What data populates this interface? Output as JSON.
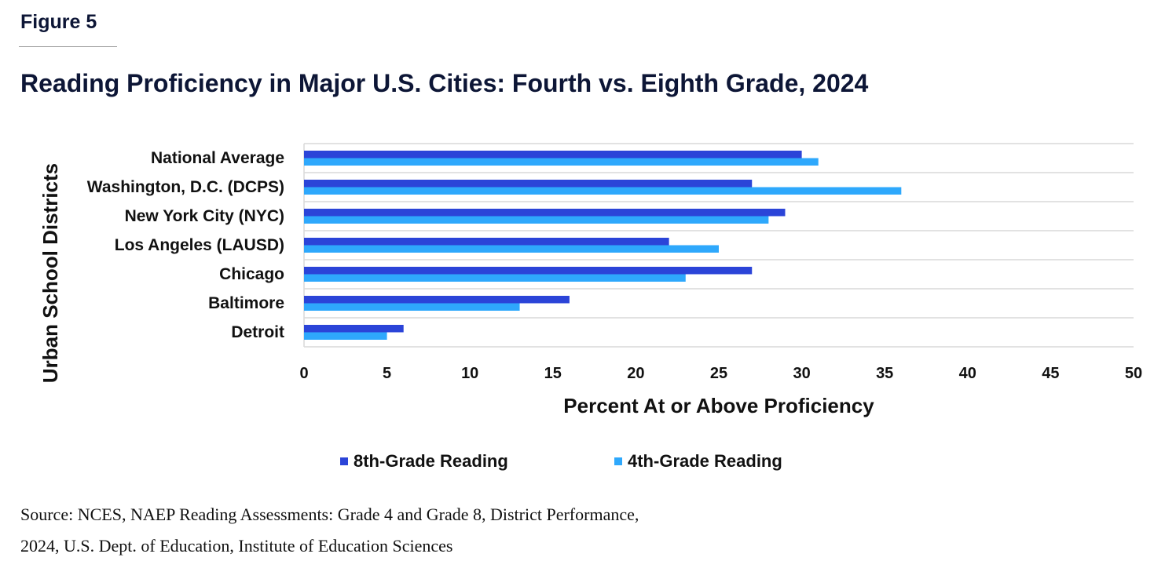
{
  "figure_label": "Figure 5",
  "source": [
    "Source: NCES, NAEP Reading Assessments: Grade 4 and Grade 8, District Performance,",
    "2024, U.S. Dept. of Education, Institute of Education Sciences"
  ],
  "chart_data": {
    "type": "bar",
    "orientation": "horizontal",
    "title": "Reading Proficiency in Major U.S. Cities: Fourth vs. Eighth Grade, 2024",
    "xlabel": "Percent At or Above Proficiency",
    "ylabel": "Urban School Districts",
    "xlim": [
      0,
      50
    ],
    "xticks": [
      0,
      5,
      10,
      15,
      20,
      25,
      30,
      35,
      40,
      45,
      50
    ],
    "categories": [
      "National Average",
      "Washington, D.C. (DCPS)",
      "New York City (NYC)",
      "Los Angeles (LAUSD)",
      "Chicago",
      "Baltimore",
      "Detroit"
    ],
    "series": [
      {
        "name": "8th-Grade Reading",
        "color": "#2b44d8",
        "values": [
          30,
          27,
          29,
          22,
          27,
          16,
          6
        ]
      },
      {
        "name": "4th-Grade Reading",
        "color": "#2ea8fc",
        "values": [
          31,
          36,
          28,
          25,
          23,
          13,
          5
        ]
      }
    ],
    "legend_position": "bottom",
    "grid": "horizontal category separators"
  }
}
